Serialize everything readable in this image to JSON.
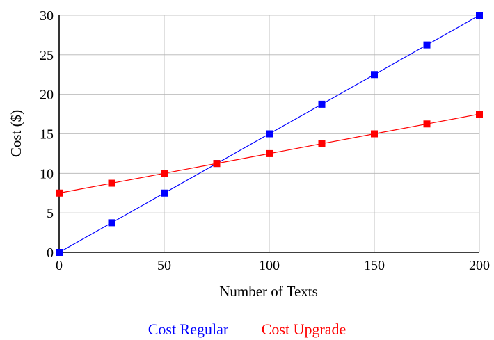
{
  "chart_data": {
    "type": "line",
    "title": "",
    "xlabel": "Number of Texts",
    "ylabel": "Cost ($)",
    "xlim": [
      0,
      200
    ],
    "ylim": [
      0,
      30
    ],
    "xticks": [
      "0",
      "50",
      "100",
      "150",
      "200"
    ],
    "yticks": [
      "0",
      "5",
      "10",
      "15",
      "20",
      "25",
      "30"
    ],
    "grid": true,
    "legend_position": "bottom",
    "x": [
      0,
      25,
      50,
      75,
      100,
      125,
      150,
      175,
      200
    ],
    "series": [
      {
        "name": "Cost Regular",
        "color": "#0000ff",
        "marker": "square",
        "values": [
          0,
          3.75,
          7.5,
          11.25,
          15,
          18.75,
          22.5,
          26.25,
          30
        ]
      },
      {
        "name": "Cost Upgrade",
        "color": "#ff0000",
        "marker": "square",
        "values": [
          7.5,
          8.75,
          10,
          11.25,
          12.5,
          13.75,
          15,
          16.25,
          17.5
        ]
      }
    ]
  }
}
